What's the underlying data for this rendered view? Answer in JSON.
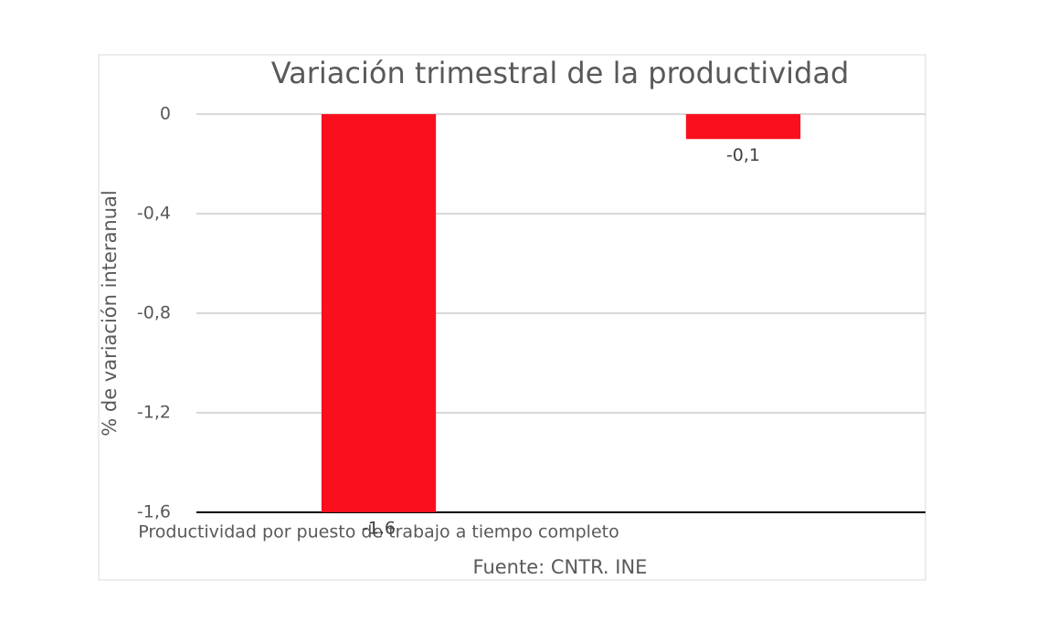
{
  "chart_data": {
    "type": "bar",
    "title": "Variación trimestral de la productividad",
    "y_label": "% de variación interanual",
    "x_label": "Fuente: CNTR. INE",
    "categories": [
      "Productividad por puesto de trabajo a tiempo completo",
      null
    ],
    "values": [
      -1.6,
      -0.1
    ],
    "value_labels": [
      "-1,6",
      "-0,1"
    ],
    "color": "#fa0f1e",
    "ylim": [
      -1.6,
      0
    ],
    "yticks": [
      {
        "value": -1.6,
        "label": "-1,6"
      },
      {
        "value": -1.2,
        "label": "-1,2"
      },
      {
        "value": -0.8,
        "label": "-0,8"
      },
      {
        "value": -0.4,
        "label": "-0,4"
      },
      0
    ],
    "grid": true
  }
}
